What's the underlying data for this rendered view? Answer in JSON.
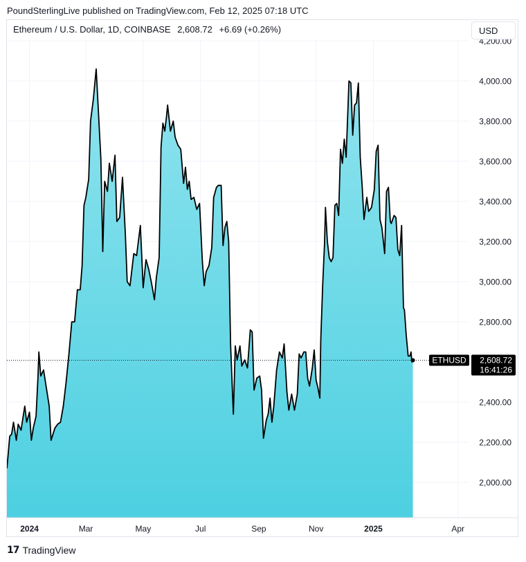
{
  "publisher_line": "PoundSterlingLive published on TradingView.com, Feb 12, 2025 07:18 UTC",
  "legend": {
    "symbol": "Ethereum / U.S. Dollar, 1D, COINBASE",
    "price": "2,608.72",
    "change": "+6.69 (+0.26%)"
  },
  "currency_button": "USD",
  "brand": {
    "logo": "17",
    "name": "TradingView"
  },
  "colors": {
    "line": "#000000",
    "area_top": "#8fe3ee",
    "area_bottom": "#4dd0e1",
    "grid": "#f0f3fa",
    "price_tag": "#000000",
    "axis_text": "#131722"
  },
  "chart_data": {
    "type": "area",
    "title": "",
    "xlabel": "",
    "ylabel": "",
    "ylim": [
      1880,
      4200
    ],
    "y_ticks": [
      2000,
      2200,
      2400,
      2600,
      2800,
      3000,
      3200,
      3400,
      3600,
      3800,
      4000,
      4200
    ],
    "y_tick_labels": [
      "2,000.00",
      "2,200.00",
      "2,400.00",
      "2,600.00",
      "2,800.00",
      "3,000.00",
      "3,200.00",
      "3,400.00",
      "3,600.00",
      "3,800.00",
      "4,000.00",
      "4,200.00"
    ],
    "xlim": [
      "2023-12-08",
      "2025-04-13"
    ],
    "x_ticks": [
      {
        "date": "2024-01-01",
        "label": "2024",
        "bold": true
      },
      {
        "date": "2024-03-01",
        "label": "Mar",
        "bold": false
      },
      {
        "date": "2024-05-01",
        "label": "May",
        "bold": false
      },
      {
        "date": "2024-07-01",
        "label": "Jul",
        "bold": false
      },
      {
        "date": "2024-09-01",
        "label": "Sep",
        "bold": false
      },
      {
        "date": "2024-11-01",
        "label": "Nov",
        "bold": false
      },
      {
        "date": "2025-01-01",
        "label": "2025",
        "bold": true
      },
      {
        "date": "2025-04-01",
        "label": "Apr",
        "bold": false
      }
    ],
    "series": [
      {
        "values": [
          [
            "2023-12-08",
            2070
          ],
          [
            "2023-12-11",
            2230
          ],
          [
            "2023-12-13",
            2240
          ],
          [
            "2023-12-15",
            2300
          ],
          [
            "2023-12-18",
            2210
          ],
          [
            "2023-12-20",
            2290
          ],
          [
            "2023-12-23",
            2260
          ],
          [
            "2023-12-27",
            2380
          ],
          [
            "2023-12-29",
            2300
          ],
          [
            "2024-01-01",
            2350
          ],
          [
            "2024-01-03",
            2210
          ],
          [
            "2024-01-05",
            2270
          ],
          [
            "2024-01-08",
            2330
          ],
          [
            "2024-01-10",
            2520
          ],
          [
            "2024-01-11",
            2650
          ],
          [
            "2024-01-13",
            2530
          ],
          [
            "2024-01-16",
            2560
          ],
          [
            "2024-01-19",
            2470
          ],
          [
            "2024-01-22",
            2380
          ],
          [
            "2024-01-24",
            2210
          ],
          [
            "2024-01-28",
            2270
          ],
          [
            "2024-01-31",
            2290
          ],
          [
            "2024-02-03",
            2300
          ],
          [
            "2024-02-06",
            2380
          ],
          [
            "2024-02-09",
            2500
          ],
          [
            "2024-02-12",
            2640
          ],
          [
            "2024-02-15",
            2800
          ],
          [
            "2024-02-18",
            2800
          ],
          [
            "2024-02-21",
            2960
          ],
          [
            "2024-02-24",
            2960
          ],
          [
            "2024-02-26",
            3080
          ],
          [
            "2024-02-28",
            3380
          ],
          [
            "2024-03-01",
            3420
          ],
          [
            "2024-03-04",
            3510
          ],
          [
            "2024-03-06",
            3800
          ],
          [
            "2024-03-09",
            3910
          ],
          [
            "2024-03-12",
            4060
          ],
          [
            "2024-03-14",
            3880
          ],
          [
            "2024-03-17",
            3610
          ],
          [
            "2024-03-19",
            3150
          ],
          [
            "2024-03-21",
            3500
          ],
          [
            "2024-03-24",
            3450
          ],
          [
            "2024-03-26",
            3590
          ],
          [
            "2024-03-29",
            3500
          ],
          [
            "2024-04-01",
            3630
          ],
          [
            "2024-04-03",
            3300
          ],
          [
            "2024-04-06",
            3320
          ],
          [
            "2024-04-09",
            3520
          ],
          [
            "2024-04-12",
            3240
          ],
          [
            "2024-04-14",
            3000
          ],
          [
            "2024-04-17",
            2980
          ],
          [
            "2024-04-21",
            3140
          ],
          [
            "2024-04-24",
            3130
          ],
          [
            "2024-04-28",
            3280
          ],
          [
            "2024-05-01",
            2970
          ],
          [
            "2024-05-04",
            3110
          ],
          [
            "2024-05-07",
            3060
          ],
          [
            "2024-05-10",
            2990
          ],
          [
            "2024-05-13",
            2910
          ],
          [
            "2024-05-15",
            3020
          ],
          [
            "2024-05-18",
            3120
          ],
          [
            "2024-05-20",
            3670
          ],
          [
            "2024-05-22",
            3790
          ],
          [
            "2024-05-24",
            3750
          ],
          [
            "2024-05-26",
            3830
          ],
          [
            "2024-05-27",
            3880
          ],
          [
            "2024-05-30",
            3750
          ],
          [
            "2024-06-02",
            3800
          ],
          [
            "2024-06-04",
            3720
          ],
          [
            "2024-06-07",
            3680
          ],
          [
            "2024-06-10",
            3660
          ],
          [
            "2024-06-13",
            3490
          ],
          [
            "2024-06-15",
            3570
          ],
          [
            "2024-06-17",
            3460
          ],
          [
            "2024-06-19",
            3500
          ],
          [
            "2024-06-21",
            3410
          ],
          [
            "2024-06-24",
            3420
          ],
          [
            "2024-06-27",
            3360
          ],
          [
            "2024-06-30",
            3390
          ],
          [
            "2024-07-03",
            3100
          ],
          [
            "2024-07-05",
            2980
          ],
          [
            "2024-07-07",
            3050
          ],
          [
            "2024-07-10",
            3080
          ],
          [
            "2024-07-13",
            3170
          ],
          [
            "2024-07-15",
            3420
          ],
          [
            "2024-07-18",
            3470
          ],
          [
            "2024-07-20",
            3480
          ],
          [
            "2024-07-23",
            3480
          ],
          [
            "2024-07-25",
            3180
          ],
          [
            "2024-07-27",
            3270
          ],
          [
            "2024-07-29",
            3300
          ],
          [
            "2024-07-31",
            3200
          ],
          [
            "2024-08-02",
            2690
          ],
          [
            "2024-08-04",
            2450
          ],
          [
            "2024-08-05",
            2340
          ],
          [
            "2024-08-07",
            2680
          ],
          [
            "2024-08-09",
            2610
          ],
          [
            "2024-08-12",
            2680
          ],
          [
            "2024-08-14",
            2580
          ],
          [
            "2024-08-17",
            2610
          ],
          [
            "2024-08-20",
            2570
          ],
          [
            "2024-08-23",
            2760
          ],
          [
            "2024-08-25",
            2750
          ],
          [
            "2024-08-27",
            2460
          ],
          [
            "2024-08-30",
            2520
          ],
          [
            "2024-09-02",
            2530
          ],
          [
            "2024-09-04",
            2460
          ],
          [
            "2024-09-06",
            2220
          ],
          [
            "2024-09-09",
            2310
          ],
          [
            "2024-09-11",
            2340
          ],
          [
            "2024-09-13",
            2420
          ],
          [
            "2024-09-15",
            2300
          ],
          [
            "2024-09-17",
            2380
          ],
          [
            "2024-09-20",
            2560
          ],
          [
            "2024-09-23",
            2650
          ],
          [
            "2024-09-26",
            2620
          ],
          [
            "2024-09-28",
            2690
          ],
          [
            "2024-10-01",
            2450
          ],
          [
            "2024-10-03",
            2360
          ],
          [
            "2024-10-06",
            2440
          ],
          [
            "2024-10-09",
            2360
          ],
          [
            "2024-10-12",
            2440
          ],
          [
            "2024-10-14",
            2640
          ],
          [
            "2024-10-16",
            2620
          ],
          [
            "2024-10-19",
            2650
          ],
          [
            "2024-10-21",
            2650
          ],
          [
            "2024-10-23",
            2520
          ],
          [
            "2024-10-25",
            2480
          ],
          [
            "2024-10-28",
            2570
          ],
          [
            "2024-10-30",
            2660
          ],
          [
            "2024-11-01",
            2510
          ],
          [
            "2024-11-03",
            2470
          ],
          [
            "2024-11-05",
            2420
          ],
          [
            "2024-11-06",
            2710
          ],
          [
            "2024-11-08",
            2980
          ],
          [
            "2024-11-10",
            3190
          ],
          [
            "2024-11-11",
            3370
          ],
          [
            "2024-11-13",
            3200
          ],
          [
            "2024-11-15",
            3120
          ],
          [
            "2024-11-17",
            3100
          ],
          [
            "2024-11-19",
            3120
          ],
          [
            "2024-11-21",
            3380
          ],
          [
            "2024-11-23",
            3390
          ],
          [
            "2024-11-25",
            3330
          ],
          [
            "2024-11-27",
            3660
          ],
          [
            "2024-11-29",
            3590
          ],
          [
            "2024-12-01",
            3710
          ],
          [
            "2024-12-03",
            3620
          ],
          [
            "2024-12-06",
            4000
          ],
          [
            "2024-12-08",
            3990
          ],
          [
            "2024-12-10",
            3730
          ],
          [
            "2024-12-12",
            3880
          ],
          [
            "2024-12-14",
            3890
          ],
          [
            "2024-12-16",
            3990
          ],
          [
            "2024-12-18",
            3620
          ],
          [
            "2024-12-20",
            3480
          ],
          [
            "2024-12-22",
            3310
          ],
          [
            "2024-12-25",
            3420
          ],
          [
            "2024-12-27",
            3350
          ],
          [
            "2024-12-30",
            3370
          ],
          [
            "2025-01-02",
            3460
          ],
          [
            "2025-01-04",
            3650
          ],
          [
            "2025-01-06",
            3680
          ],
          [
            "2025-01-08",
            3310
          ],
          [
            "2025-01-10",
            3270
          ],
          [
            "2025-01-13",
            3140
          ],
          [
            "2025-01-15",
            3450
          ],
          [
            "2025-01-17",
            3470
          ],
          [
            "2025-01-19",
            3300
          ],
          [
            "2025-01-20",
            3290
          ],
          [
            "2025-01-23",
            3330
          ],
          [
            "2025-01-25",
            3320
          ],
          [
            "2025-01-27",
            3160
          ],
          [
            "2025-01-29",
            3130
          ],
          [
            "2025-01-31",
            3280
          ],
          [
            "2025-02-02",
            2870
          ],
          [
            "2025-02-03",
            2860
          ],
          [
            "2025-02-05",
            2730
          ],
          [
            "2025-02-07",
            2630
          ],
          [
            "2025-02-09",
            2630
          ],
          [
            "2025-02-10",
            2650
          ],
          [
            "2025-02-11",
            2600
          ],
          [
            "2025-02-12",
            2608.72
          ]
        ]
      }
    ],
    "last_price_tag": {
      "symbol": "ETHUSD",
      "price": "2,608.72",
      "countdown": "16:41:26"
    }
  }
}
